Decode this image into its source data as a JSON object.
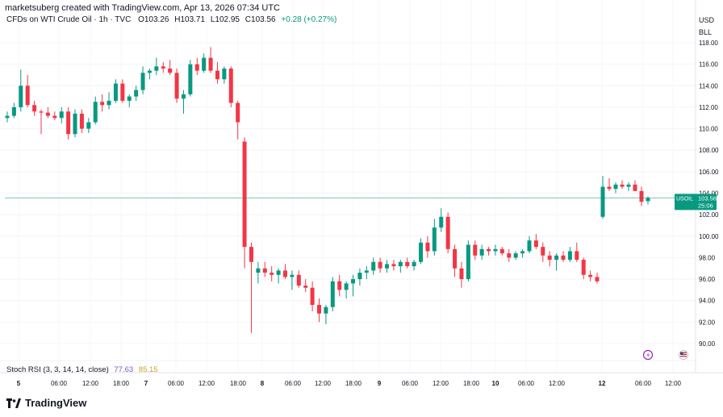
{
  "header": {
    "credit": "marketsuberg created with TradingView.com, Apr 13, 2026 07:34 UTC",
    "symbol": "CFDs on WTI Crude Oil · 1h · TVC",
    "o_label": "O",
    "o_value": "103.26",
    "h_label": "H",
    "h_value": "103.71",
    "l_label": "L",
    "l_value": "102.95",
    "c_label": "C",
    "c_value": "103.56",
    "change": "+0.28 (+0.27%)"
  },
  "price_scale": {
    "currency": "USD",
    "unit": "BLL",
    "ticks": [
      "118.00",
      "116.00",
      "114.00",
      "112.00",
      "110.00",
      "108.00",
      "106.00",
      "104.00",
      "102.00",
      "100.00",
      "98.00",
      "96.00",
      "94.00",
      "92.00",
      "90.00"
    ],
    "last_label": "USOIL",
    "last_price": "103.56",
    "countdown": "25:06"
  },
  "time_axis": {
    "labels": [
      "5",
      "06:00",
      "12:00",
      "18:00",
      "7",
      "06:00",
      "12:00",
      "18:00",
      "8",
      "06:00",
      "12:00",
      "18:00",
      "9",
      "06:00",
      "12:00",
      "18:00",
      "10",
      "06:00",
      "12:00",
      "12",
      "06:00",
      "12:00"
    ]
  },
  "indicator": {
    "name": "Stoch RSI (3, 3, 14, 14, close)",
    "k_value": "77.63",
    "d_value": "85.15"
  },
  "brand": {
    "name": "TradingView"
  },
  "colors": {
    "up": "#089981",
    "down": "#f23645",
    "last_price_line": "#089981",
    "k_line": "#7e57c2",
    "d_line": "#c9a227"
  },
  "chart_data": {
    "type": "candlestick",
    "title": "CFDs on WTI Crude Oil · 1h · TVC",
    "ylabel": "USD",
    "ylim": [
      89,
      119
    ],
    "last_price": 103.56,
    "candles": [
      {
        "o": 111.0,
        "h": 111.6,
        "l": 110.6,
        "c": 111.2
      },
      {
        "o": 111.2,
        "h": 112.4,
        "l": 111.0,
        "c": 112.0
      },
      {
        "o": 112.0,
        "h": 115.5,
        "l": 111.6,
        "c": 114.0
      },
      {
        "o": 114.0,
        "h": 115.0,
        "l": 112.0,
        "c": 112.2
      },
      {
        "o": 112.2,
        "h": 112.6,
        "l": 111.2,
        "c": 111.6
      },
      {
        "o": 111.6,
        "h": 111.8,
        "l": 109.5,
        "c": 111.5
      },
      {
        "o": 111.5,
        "h": 112.0,
        "l": 111.0,
        "c": 111.2
      },
      {
        "o": 111.2,
        "h": 111.6,
        "l": 110.8,
        "c": 111.0
      },
      {
        "o": 111.0,
        "h": 112.0,
        "l": 110.5,
        "c": 111.6
      },
      {
        "o": 111.6,
        "h": 112.0,
        "l": 109.0,
        "c": 109.5
      },
      {
        "o": 109.5,
        "h": 111.8,
        "l": 109.2,
        "c": 111.4
      },
      {
        "o": 111.4,
        "h": 111.8,
        "l": 109.6,
        "c": 110.0
      },
      {
        "o": 110.0,
        "h": 111.0,
        "l": 109.6,
        "c": 110.6
      },
      {
        "o": 110.6,
        "h": 113.0,
        "l": 110.4,
        "c": 112.5
      },
      {
        "o": 112.5,
        "h": 113.2,
        "l": 111.6,
        "c": 112.2
      },
      {
        "o": 112.2,
        "h": 113.4,
        "l": 111.8,
        "c": 112.6
      },
      {
        "o": 112.6,
        "h": 114.6,
        "l": 112.4,
        "c": 114.2
      },
      {
        "o": 114.2,
        "h": 114.6,
        "l": 112.4,
        "c": 112.6
      },
      {
        "o": 112.6,
        "h": 113.2,
        "l": 112.0,
        "c": 113.0
      },
      {
        "o": 113.0,
        "h": 114.0,
        "l": 112.6,
        "c": 113.6
      },
      {
        "o": 113.6,
        "h": 115.8,
        "l": 113.2,
        "c": 115.2
      },
      {
        "o": 115.2,
        "h": 115.6,
        "l": 114.6,
        "c": 115.4
      },
      {
        "o": 115.4,
        "h": 116.6,
        "l": 115.0,
        "c": 115.8
      },
      {
        "o": 115.8,
        "h": 116.2,
        "l": 115.2,
        "c": 115.6
      },
      {
        "o": 115.6,
        "h": 116.4,
        "l": 115.0,
        "c": 115.2
      },
      {
        "o": 115.2,
        "h": 115.6,
        "l": 112.4,
        "c": 112.8
      },
      {
        "o": 112.8,
        "h": 113.6,
        "l": 111.4,
        "c": 113.2
      },
      {
        "o": 113.2,
        "h": 116.4,
        "l": 113.0,
        "c": 116.0
      },
      {
        "o": 116.0,
        "h": 116.6,
        "l": 115.0,
        "c": 115.4
      },
      {
        "o": 115.4,
        "h": 117.0,
        "l": 115.2,
        "c": 116.6
      },
      {
        "o": 116.6,
        "h": 117.6,
        "l": 115.2,
        "c": 115.4
      },
      {
        "o": 115.4,
        "h": 116.2,
        "l": 114.2,
        "c": 114.6
      },
      {
        "o": 114.6,
        "h": 115.8,
        "l": 114.2,
        "c": 115.6
      },
      {
        "o": 115.6,
        "h": 115.8,
        "l": 112.0,
        "c": 112.4
      },
      {
        "o": 112.4,
        "h": 112.6,
        "l": 109.0,
        "c": 110.6
      },
      {
        "o": 108.8,
        "h": 109.2,
        "l": 97.0,
        "c": 99.0
      },
      {
        "o": 99.0,
        "h": 99.4,
        "l": 91.0,
        "c": 97.6
      },
      {
        "o": 96.6,
        "h": 97.6,
        "l": 95.6,
        "c": 97.0
      },
      {
        "o": 97.0,
        "h": 97.6,
        "l": 96.2,
        "c": 96.6
      },
      {
        "o": 96.6,
        "h": 97.2,
        "l": 95.8,
        "c": 96.4
      },
      {
        "o": 96.4,
        "h": 97.0,
        "l": 95.6,
        "c": 96.8
      },
      {
        "o": 96.8,
        "h": 97.4,
        "l": 96.0,
        "c": 96.2
      },
      {
        "o": 96.2,
        "h": 96.8,
        "l": 95.0,
        "c": 96.4
      },
      {
        "o": 96.4,
        "h": 96.8,
        "l": 95.2,
        "c": 95.4
      },
      {
        "o": 95.4,
        "h": 96.0,
        "l": 94.8,
        "c": 95.2
      },
      {
        "o": 95.2,
        "h": 95.8,
        "l": 93.0,
        "c": 93.6
      },
      {
        "o": 93.6,
        "h": 94.2,
        "l": 92.0,
        "c": 92.8
      },
      {
        "o": 92.8,
        "h": 93.6,
        "l": 91.8,
        "c": 93.4
      },
      {
        "o": 93.4,
        "h": 96.2,
        "l": 93.0,
        "c": 95.8
      },
      {
        "o": 95.8,
        "h": 96.4,
        "l": 94.4,
        "c": 95.0
      },
      {
        "o": 95.0,
        "h": 95.8,
        "l": 94.2,
        "c": 95.6
      },
      {
        "o": 95.6,
        "h": 96.4,
        "l": 94.4,
        "c": 96.0
      },
      {
        "o": 96.0,
        "h": 97.0,
        "l": 95.4,
        "c": 96.6
      },
      {
        "o": 96.6,
        "h": 97.2,
        "l": 96.0,
        "c": 96.8
      },
      {
        "o": 96.8,
        "h": 98.0,
        "l": 96.4,
        "c": 97.6
      },
      {
        "o": 97.6,
        "h": 98.0,
        "l": 96.6,
        "c": 97.0
      },
      {
        "o": 97.0,
        "h": 97.8,
        "l": 96.6,
        "c": 97.4
      },
      {
        "o": 97.4,
        "h": 97.8,
        "l": 96.8,
        "c": 97.2
      },
      {
        "o": 97.2,
        "h": 97.8,
        "l": 96.6,
        "c": 97.6
      },
      {
        "o": 97.6,
        "h": 98.0,
        "l": 97.0,
        "c": 97.2
      },
      {
        "o": 97.2,
        "h": 97.8,
        "l": 96.8,
        "c": 97.6
      },
      {
        "o": 97.6,
        "h": 99.8,
        "l": 97.4,
        "c": 99.4
      },
      {
        "o": 99.4,
        "h": 100.0,
        "l": 98.0,
        "c": 98.6
      },
      {
        "o": 98.6,
        "h": 101.6,
        "l": 98.2,
        "c": 100.8
      },
      {
        "o": 100.8,
        "h": 102.6,
        "l": 100.4,
        "c": 101.8
      },
      {
        "o": 101.8,
        "h": 102.2,
        "l": 98.4,
        "c": 98.8
      },
      {
        "o": 98.8,
        "h": 99.2,
        "l": 96.2,
        "c": 97.0
      },
      {
        "o": 97.0,
        "h": 97.6,
        "l": 95.2,
        "c": 96.0
      },
      {
        "o": 96.0,
        "h": 99.6,
        "l": 95.8,
        "c": 99.2
      },
      {
        "o": 99.2,
        "h": 99.6,
        "l": 97.8,
        "c": 98.2
      },
      {
        "o": 98.2,
        "h": 99.2,
        "l": 97.8,
        "c": 98.8
      },
      {
        "o": 98.8,
        "h": 99.0,
        "l": 98.2,
        "c": 98.6
      },
      {
        "o": 98.6,
        "h": 99.2,
        "l": 98.2,
        "c": 98.8
      },
      {
        "o": 98.8,
        "h": 99.0,
        "l": 98.2,
        "c": 98.4
      },
      {
        "o": 98.4,
        "h": 98.8,
        "l": 97.6,
        "c": 98.0
      },
      {
        "o": 98.0,
        "h": 98.6,
        "l": 97.8,
        "c": 98.4
      },
      {
        "o": 98.4,
        "h": 98.8,
        "l": 98.0,
        "c": 98.6
      },
      {
        "o": 98.6,
        "h": 100.0,
        "l": 98.4,
        "c": 99.6
      },
      {
        "o": 99.6,
        "h": 100.2,
        "l": 98.8,
        "c": 99.0
      },
      {
        "o": 99.0,
        "h": 99.4,
        "l": 97.6,
        "c": 98.2
      },
      {
        "o": 98.2,
        "h": 98.6,
        "l": 97.2,
        "c": 97.8
      },
      {
        "o": 97.8,
        "h": 98.4,
        "l": 96.8,
        "c": 98.2
      },
      {
        "o": 98.2,
        "h": 98.6,
        "l": 97.6,
        "c": 97.8
      },
      {
        "o": 97.8,
        "h": 99.0,
        "l": 97.6,
        "c": 98.6
      },
      {
        "o": 98.6,
        "h": 99.4,
        "l": 97.6,
        "c": 97.8
      },
      {
        "o": 97.8,
        "h": 98.0,
        "l": 96.0,
        "c": 96.4
      },
      {
        "o": 96.4,
        "h": 96.8,
        "l": 95.8,
        "c": 96.2
      },
      {
        "o": 96.2,
        "h": 96.6,
        "l": 95.6,
        "c": 95.8
      },
      {
        "o": 101.8,
        "h": 105.6,
        "l": 101.6,
        "c": 104.6
      },
      {
        "o": 104.6,
        "h": 105.4,
        "l": 104.2,
        "c": 104.4
      },
      {
        "o": 104.4,
        "h": 105.0,
        "l": 104.0,
        "c": 104.8
      },
      {
        "o": 104.8,
        "h": 105.2,
        "l": 104.4,
        "c": 104.6
      },
      {
        "o": 104.6,
        "h": 105.0,
        "l": 104.2,
        "c": 104.8
      },
      {
        "o": 104.8,
        "h": 105.2,
        "l": 104.4,
        "c": 104.2
      },
      {
        "o": 104.2,
        "h": 104.6,
        "l": 102.8,
        "c": 103.2
      },
      {
        "o": 103.26,
        "h": 103.71,
        "l": 102.95,
        "c": 103.56
      }
    ]
  }
}
